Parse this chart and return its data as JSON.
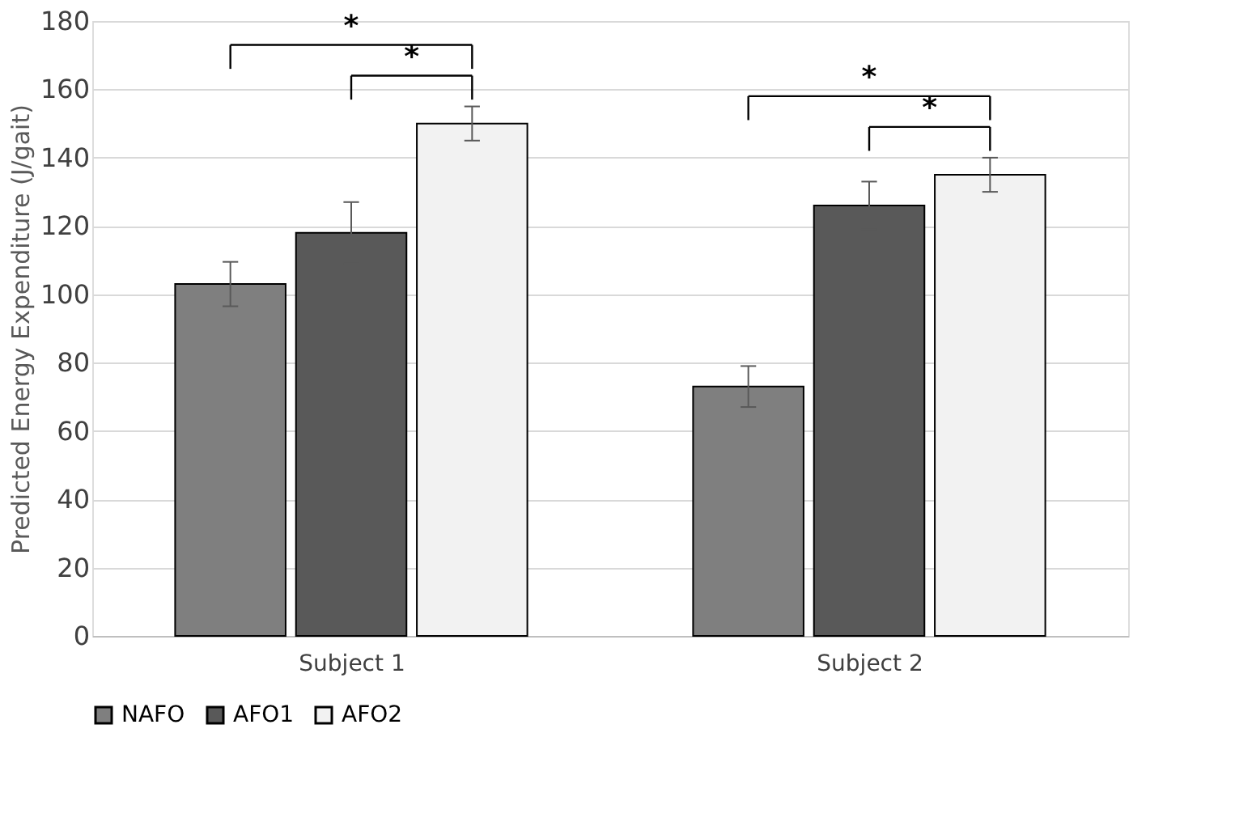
{
  "chart_data": {
    "type": "bar",
    "ylabel": "Predicted Energy Expenditure (J/gait)",
    "categories": [
      "Subject 1",
      "Subject 2"
    ],
    "series": [
      {
        "name": "NAFO",
        "color": "#7f7f7f",
        "values": [
          103,
          73
        ],
        "errors": [
          6.5,
          6
        ]
      },
      {
        "name": "AFO1",
        "color": "#595959",
        "values": [
          118,
          126
        ],
        "errors": [
          9,
          7
        ]
      },
      {
        "name": "AFO2",
        "color": "#f2f2f2",
        "values": [
          150,
          135
        ],
        "errors": [
          5,
          5
        ]
      }
    ],
    "ylim": [
      0,
      180
    ],
    "yticks": [
      0,
      20,
      40,
      60,
      80,
      100,
      120,
      140,
      160,
      180
    ],
    "grid": "y",
    "legend": "bottom",
    "annotations": [
      "*",
      "*",
      "*",
      "*"
    ]
  }
}
